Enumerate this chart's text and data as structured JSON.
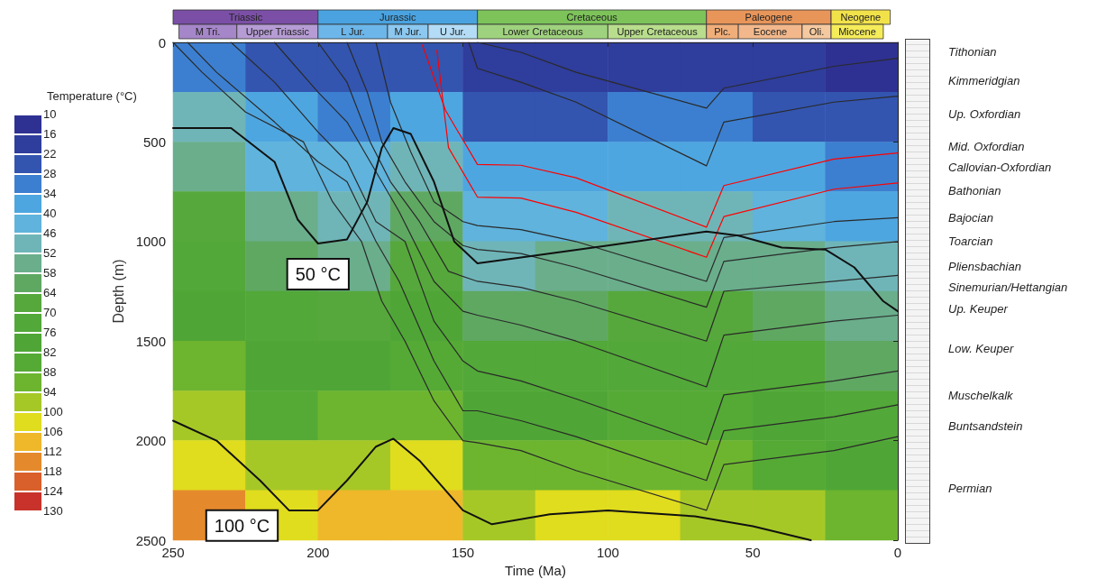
{
  "chart_data": [
    {
      "type": "heatmap",
      "clabel": "Temperature (°C)",
      "clim": [
        10,
        130
      ],
      "cticks": [
        10,
        16,
        22,
        28,
        34,
        40,
        46,
        52,
        58,
        64,
        70,
        76,
        82,
        88,
        94,
        100,
        106,
        112,
        118,
        124,
        130
      ],
      "categories": [
        null,
        null,
        null,
        null,
        null,
        null,
        null,
        null,
        null,
        null
      ],
      "y_categories": [
        null,
        null,
        null,
        null,
        null,
        null,
        null,
        null,
        null,
        null
      ],
      "cells": [
        [
          32,
          25,
          24,
          25,
          19,
          19,
          19,
          20,
          17,
          14
        ],
        [
          47,
          35,
          32,
          38,
          27,
          27,
          28,
          29,
          26,
          22
        ],
        [
          56,
          45,
          40,
          51,
          35,
          36,
          37,
          38,
          35,
          30
        ],
        [
          64,
          54,
          48,
          59,
          43,
          44,
          46,
          47,
          44,
          38
        ],
        [
          72,
          62,
          57,
          67,
          51,
          53,
          55,
          56,
          53,
          46
        ],
        [
          80,
          70,
          68,
          76,
          61,
          62,
          64,
          64,
          62,
          54
        ],
        [
          89,
          78,
          78,
          84,
          70,
          72,
          73,
          73,
          70,
          63
        ],
        [
          97,
          86,
          89,
          92,
          80,
          81,
          82,
          82,
          79,
          72
        ],
        [
          105,
          94,
          99,
          101,
          89,
          91,
          91,
          90,
          87,
          81
        ],
        [
          113,
          102,
          110,
          109,
          98,
          100,
          101,
          99,
          96,
          89
        ]
      ]
    },
    {
      "type": "line",
      "xlabel": "Time (Ma)",
      "ylabel": "Depth (m)",
      "xlim": [
        250,
        0
      ],
      "xticks": [
        250,
        200,
        150,
        100,
        50,
        0
      ],
      "ylim": [
        2500,
        0
      ],
      "yticks": [
        0,
        500,
        1000,
        1500,
        2000,
        2500
      ],
      "grid": false,
      "legend": false,
      "marker": "none",
      "line_style": "solid",
      "series": [
        {
          "color": "#2a2a2a",
          "x": [
            250,
            240,
            225,
            205,
            195,
            185,
            178,
            170,
            160,
            150,
            145,
            130,
            111,
            66,
            60,
            22,
            0
          ],
          "values": [
            0,
            150,
            350,
            500,
            800,
            1000,
            1300,
            1500,
            1800,
            2000,
            2010,
            2050,
            2150,
            2350,
            2120,
            2050,
            1980
          ]
        },
        {
          "color": "#2a2a2a",
          "x": [
            245,
            235,
            215,
            200,
            190,
            180,
            172,
            160,
            150,
            145,
            130,
            111,
            66,
            60,
            22,
            0
          ],
          "values": [
            0,
            150,
            400,
            600,
            700,
            1000,
            1200,
            1600,
            1850,
            1850,
            1900,
            1980,
            2200,
            1950,
            1880,
            1820
          ]
        },
        {
          "color": "#2a2a2a",
          "x": [
            230,
            215,
            200,
            190,
            180,
            170,
            160,
            150,
            145,
            130,
            111,
            66,
            60,
            22,
            0
          ],
          "values": [
            0,
            200,
            450,
            600,
            900,
            1000,
            1400,
            1600,
            1650,
            1700,
            1790,
            2020,
            1770,
            1700,
            1650
          ]
        },
        {
          "color": "#2a2a2a",
          "x": [
            215,
            200,
            190,
            180,
            172,
            160,
            150,
            145,
            130,
            111,
            66,
            60,
            22,
            0
          ],
          "values": [
            0,
            250,
            400,
            650,
            850,
            1200,
            1350,
            1370,
            1420,
            1500,
            1730,
            1470,
            1400,
            1370
          ]
        },
        {
          "color": "#2a2a2a",
          "x": [
            200,
            190,
            182,
            175,
            165,
            155,
            145,
            130,
            111,
            66,
            60,
            22,
            0
          ],
          "values": [
            0,
            200,
            500,
            700,
            900,
            1150,
            1200,
            1230,
            1300,
            1500,
            1250,
            1200,
            1170
          ]
        },
        {
          "color": "#2a2a2a",
          "x": [
            190,
            183,
            178,
            170,
            160,
            150,
            145,
            130,
            111,
            66,
            60,
            22,
            0
          ],
          "values": [
            0,
            250,
            500,
            700,
            900,
            1020,
            1040,
            1060,
            1130,
            1330,
            1100,
            1030,
            1000
          ]
        },
        {
          "color": "#2a2a2a",
          "x": [
            180,
            175,
            168,
            160,
            150,
            145,
            130,
            111,
            66,
            60,
            22,
            0
          ],
          "values": [
            0,
            300,
            550,
            800,
            900,
            920,
            940,
            1000,
            1200,
            980,
            900,
            880
          ]
        },
        {
          "color": "#ff0000",
          "x": [
            164,
            156,
            145,
            130,
            111,
            66,
            60,
            22,
            0
          ],
          "values": [
            13,
            342,
            613,
            617,
            680,
            928,
            719,
            586,
            555
          ]
        },
        {
          "color": "#ff0000",
          "x": [
            159,
            155,
            145,
            130,
            111,
            66,
            60,
            22,
            0
          ],
          "values": [
            40,
            528,
            777,
            782,
            853,
            1079,
            875,
            737,
            706
          ]
        },
        {
          "color": "#2a2a2a",
          "x": [
            148,
            145,
            130,
            111,
            66,
            60,
            22,
            0
          ],
          "values": [
            0,
            130,
            200,
            300,
            620,
            400,
            300,
            270
          ]
        },
        {
          "color": "#2a2a2a",
          "x": [
            145,
            130,
            111,
            66,
            60,
            22,
            0
          ],
          "values": [
            0,
            50,
            150,
            330,
            230,
            120,
            80
          ]
        },
        {
          "name": "50 °C",
          "color": "#111111",
          "x": [
            250,
            230,
            215,
            207,
            200,
            190,
            183,
            178,
            174,
            168,
            160,
            153,
            145,
            130,
            100,
            66,
            55,
            40,
            25,
            15,
            5,
            0
          ],
          "values": [
            430,
            430,
            600,
            890,
            1010,
            990,
            800,
            530,
            430,
            460,
            700,
            1000,
            1110,
            1080,
            1020,
            950,
            970,
            1030,
            1040,
            1130,
            1300,
            1350
          ]
        },
        {
          "name": "100 °C",
          "color": "#111111",
          "x": [
            250,
            235,
            220,
            210,
            200,
            190,
            180,
            174,
            165,
            150,
            140,
            120,
            100,
            70,
            50,
            30
          ],
          "values": [
            1900,
            2000,
            2200,
            2350,
            2350,
            2200,
            2030,
            1990,
            2100,
            2350,
            2420,
            2370,
            2350,
            2380,
            2430,
            2500
          ]
        }
      ],
      "annotations": [
        "Triassic",
        "Jurassic",
        "Cretaceous",
        "Paleogene",
        "Neogene",
        "M Tri.",
        "Upper Triassic",
        "L Jur.",
        "M Jur.",
        "U Jur.",
        "Lower Cretaceous",
        "Upper Cretaceous",
        "Plc.",
        "Eocene",
        "Oli.",
        "Miocene",
        "Tithonian",
        "Kimmeridgian",
        "Up. Oxfordian",
        "Mid. Oxfordian",
        "Callovian-Oxfordian",
        "Bathonian",
        "Bajocian",
        "Toarcian",
        "Pliensbachian",
        "Sinemurian/Hettangian",
        "Up. Keuper",
        "Low. Keuper",
        "Muschelkalk",
        "Buntsandstein",
        "Permian"
      ]
    }
  ]
}
